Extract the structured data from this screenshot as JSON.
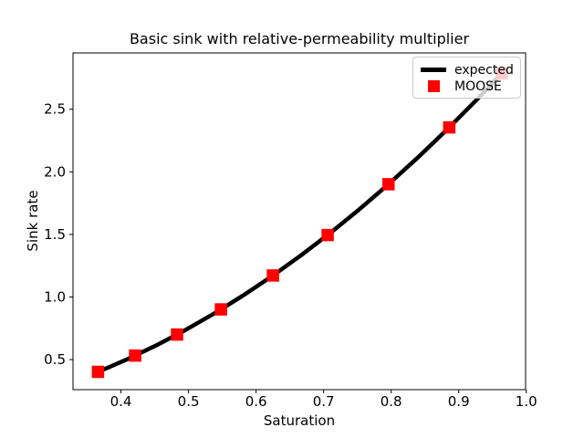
{
  "figure": {
    "background": "#ffffff"
  },
  "chart_data": {
    "type": "line",
    "title": "Basic sink with relative-permeability multiplier",
    "xlabel": "Saturation",
    "ylabel": "Sink rate",
    "xlim": [
      0.329,
      0.999
    ],
    "ylim": [
      0.26,
      2.95
    ],
    "xticks": [
      0.4,
      0.5,
      0.6,
      0.7,
      0.8,
      0.9,
      1.0
    ],
    "yticks": [
      0.5,
      1.0,
      1.5,
      2.0,
      2.5
    ],
    "grid": false,
    "legend_position": "upper-right",
    "axis_color": "#000000",
    "series": [
      {
        "name": "expected",
        "render": "line",
        "color": "#000000",
        "linewidth": 4.5,
        "x": [
          0.366,
          0.409,
          0.452,
          0.495,
          0.538,
          0.581,
          0.624,
          0.667,
          0.71,
          0.753,
          0.796,
          0.839,
          0.882,
          0.925,
          0.964
        ],
        "y": [
          0.402,
          0.502,
          0.613,
          0.735,
          0.868,
          1.013,
          1.168,
          1.335,
          1.512,
          1.701,
          1.901,
          2.112,
          2.334,
          2.567,
          2.788
        ]
      },
      {
        "name": "MOOSE",
        "render": "scatter",
        "marker": "square",
        "color": "#ff0000",
        "markersize": 13.5,
        "x": [
          0.366,
          0.421,
          0.483,
          0.548,
          0.625,
          0.706,
          0.796,
          0.886,
          0.964
        ],
        "y": [
          0.402,
          0.532,
          0.7,
          0.901,
          1.172,
          1.495,
          1.901,
          2.355,
          2.788
        ]
      }
    ]
  }
}
